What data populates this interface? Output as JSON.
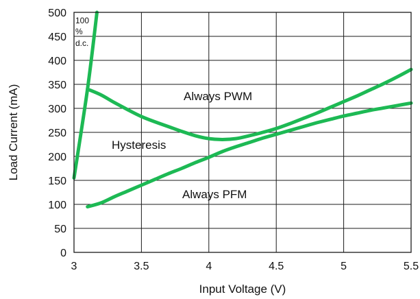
{
  "chart_data": {
    "type": "line",
    "xlabel": "Input Voltage (V)",
    "ylabel": "Load Current (mA)",
    "xlim": [
      3,
      5.5
    ],
    "ylim": [
      0,
      500
    ],
    "xticks": [
      "3",
      "3.5",
      "4",
      "4.5",
      "5",
      "5.5"
    ],
    "yticks": [
      "0",
      "50",
      "100",
      "150",
      "200",
      "250",
      "300",
      "350",
      "400",
      "450",
      "500"
    ],
    "grid": true,
    "line_color": "#1db954",
    "series": [
      {
        "key": "duty_limit",
        "x": [
          3.0,
          3.1,
          3.17
        ],
        "y": [
          155,
          340,
          500
        ]
      },
      {
        "key": "upper_threshold",
        "x": [
          3.1,
          3.2,
          3.3,
          3.4,
          3.5,
          3.6,
          3.7,
          3.8,
          3.9,
          4.0,
          4.1,
          4.2,
          4.3,
          4.4,
          4.5,
          4.6,
          4.7,
          4.8,
          4.9,
          5.0,
          5.1,
          5.2,
          5.3,
          5.4,
          5.5
        ],
        "y": [
          340,
          328,
          312,
          297,
          283,
          272,
          262,
          252,
          243,
          237,
          235,
          237,
          243,
          250,
          258,
          268,
          279,
          290,
          302,
          314,
          326,
          339,
          352,
          366,
          381
        ]
      },
      {
        "key": "lower_threshold",
        "x": [
          3.1,
          3.2,
          3.3,
          3.4,
          3.5,
          3.6,
          3.7,
          3.8,
          3.9,
          4.0,
          4.1,
          4.2,
          4.3,
          4.4,
          4.5,
          4.6,
          4.7,
          4.8,
          4.9,
          5.0,
          5.1,
          5.2,
          5.3,
          5.4,
          5.5
        ],
        "y": [
          95,
          103,
          116,
          128,
          140,
          152,
          164,
          175,
          187,
          198,
          210,
          220,
          229,
          238,
          246,
          254,
          262,
          270,
          277,
          284,
          290,
          296,
          301,
          306,
          311
        ]
      }
    ],
    "annotations": {
      "pwm": "Always PWM",
      "hysteresis": "Hysteresis",
      "pfm": "Always PFM",
      "duty_line1": "100",
      "duty_line2": "%",
      "duty_line3": "d.c."
    }
  }
}
